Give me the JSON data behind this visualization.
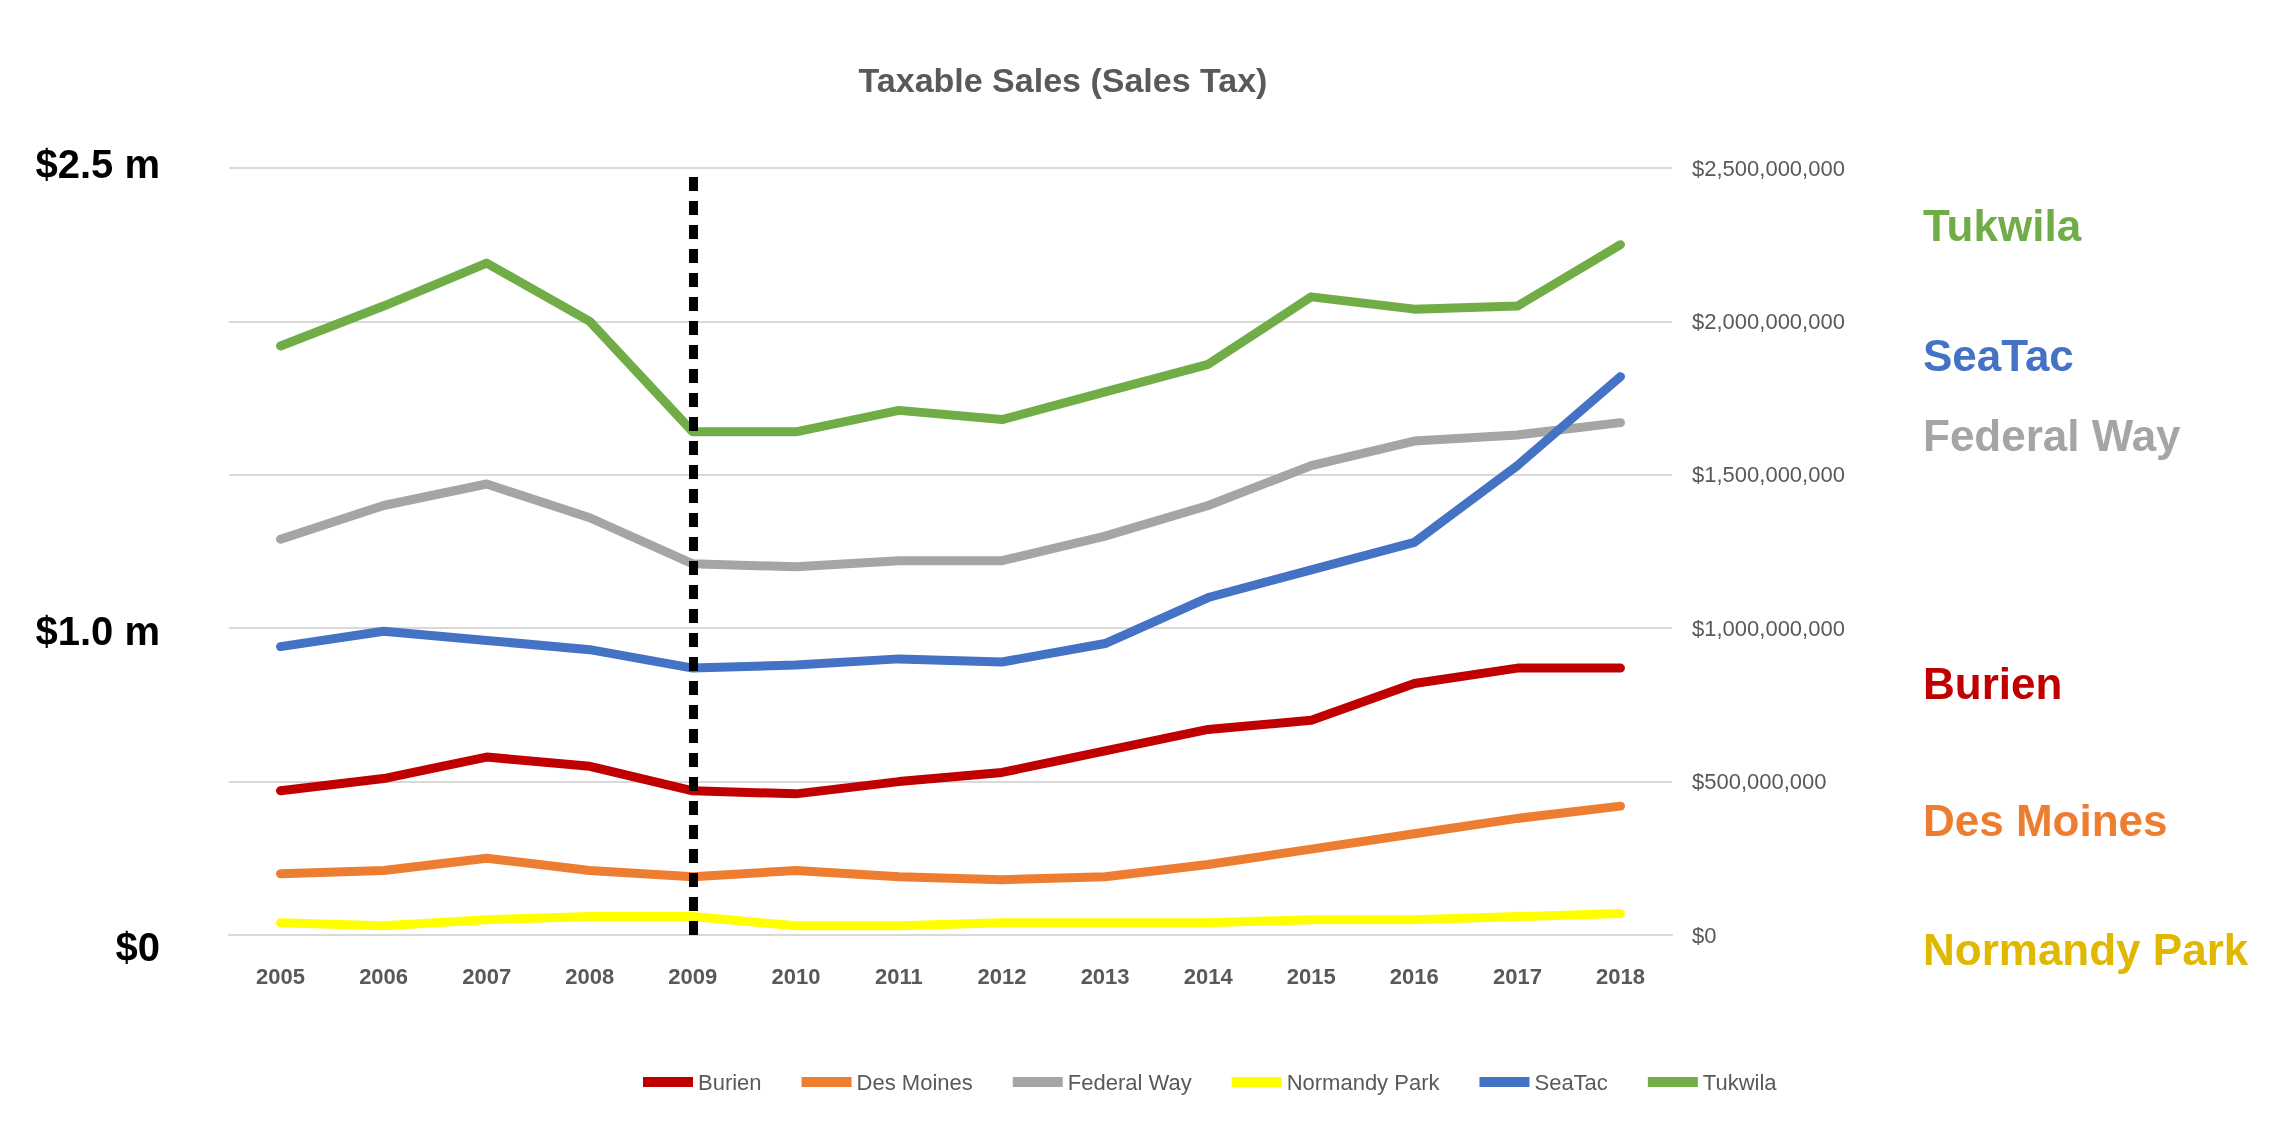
{
  "chart_data": {
    "type": "line",
    "title": "Taxable Sales (Sales Tax)",
    "categories": [
      "2005",
      "2006",
      "2007",
      "2008",
      "2009",
      "2010",
      "2011",
      "2012",
      "2013",
      "2014",
      "2015",
      "2016",
      "2017",
      "2018"
    ],
    "series": [
      {
        "name": "Burien",
        "color": "#c00000",
        "values": [
          470000000,
          510000000,
          580000000,
          550000000,
          470000000,
          460000000,
          500000000,
          530000000,
          600000000,
          670000000,
          700000000,
          820000000,
          870000000,
          870000000
        ]
      },
      {
        "name": "Des Moines",
        "color": "#ed7d31",
        "values": [
          200000000,
          210000000,
          250000000,
          210000000,
          190000000,
          210000000,
          190000000,
          180000000,
          190000000,
          230000000,
          280000000,
          330000000,
          380000000,
          420000000
        ]
      },
      {
        "name": "Federal Way",
        "color": "#a5a5a5",
        "values": [
          1290000000,
          1400000000,
          1470000000,
          1360000000,
          1210000000,
          1200000000,
          1220000000,
          1220000000,
          1300000000,
          1400000000,
          1530000000,
          1610000000,
          1630000000,
          1670000000
        ]
      },
      {
        "name": "Normandy Park",
        "color": "#ffff00",
        "values": [
          40000000,
          30000000,
          50000000,
          60000000,
          60000000,
          30000000,
          30000000,
          40000000,
          40000000,
          40000000,
          50000000,
          50000000,
          60000000,
          70000000
        ]
      },
      {
        "name": "SeaTac",
        "color": "#4472c4",
        "values": [
          940000000,
          990000000,
          960000000,
          930000000,
          870000000,
          880000000,
          900000000,
          890000000,
          950000000,
          1100000000,
          1190000000,
          1280000000,
          1530000000,
          1820000000
        ]
      },
      {
        "name": "Tukwila",
        "color": "#70ad47",
        "values": [
          1920000000,
          2050000000,
          2190000000,
          2000000000,
          1640000000,
          1640000000,
          1710000000,
          1680000000,
          1770000000,
          1860000000,
          2080000000,
          2040000000,
          2050000000,
          2250000000
        ]
      }
    ],
    "annotations": [
      "$2.5 m",
      "$1.0 m",
      "$0"
    ],
    "ylim": [
      0,
      2500000000
    ],
    "yticks": [
      {
        "value": 0,
        "label": "$0"
      },
      {
        "value": 500000000,
        "label": "$500,000,000"
      },
      {
        "value": 1000000000,
        "label": "$1,000,000,000"
      },
      {
        "value": 1500000000,
        "label": "$1,500,000,000"
      },
      {
        "value": 2000000000,
        "label": "$2,000,000,000"
      },
      {
        "value": 2500000000,
        "label": "$2,500,000,000"
      }
    ],
    "ref_lines": [
      {
        "axis": "x",
        "value": "2009",
        "color": "#000000",
        "line_style": "dashed"
      }
    ],
    "grid": "y",
    "legend": "bottom",
    "line_style": "solid"
  }
}
